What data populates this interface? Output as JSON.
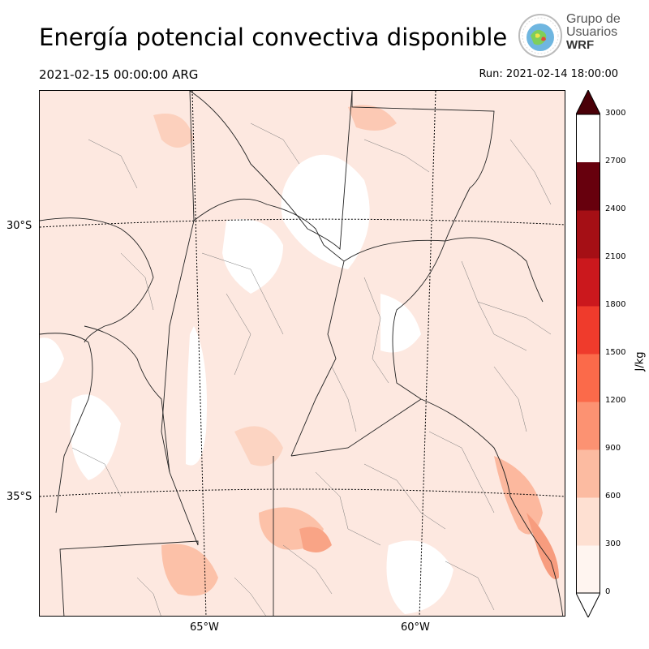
{
  "title": "Energía potencial convectiva disponible",
  "valid_time": "2021-02-15 00:00:00 ARG",
  "run_time": "Run: 2021-02-14 18:00:00",
  "logo": {
    "line1": "Grupo de",
    "line2": "Usuarios",
    "line3": "WRF"
  },
  "lat_labels": [
    "30°S",
    "35°S"
  ],
  "lon_labels": [
    "65°W",
    "60°W"
  ],
  "colorbar": {
    "unit": "J/kg",
    "ticks": [
      "0",
      "300",
      "600",
      "900",
      "1200",
      "1500",
      "1800",
      "2100",
      "2400",
      "2700",
      "3000"
    ],
    "colors": [
      "#fff5f0",
      "#fee0d2",
      "#fcbba1",
      "#fc9272",
      "#fb6a4a",
      "#ef3b2c",
      "#cb181d",
      "#a50f15",
      "#67000d",
      "#4a0008"
    ]
  }
}
